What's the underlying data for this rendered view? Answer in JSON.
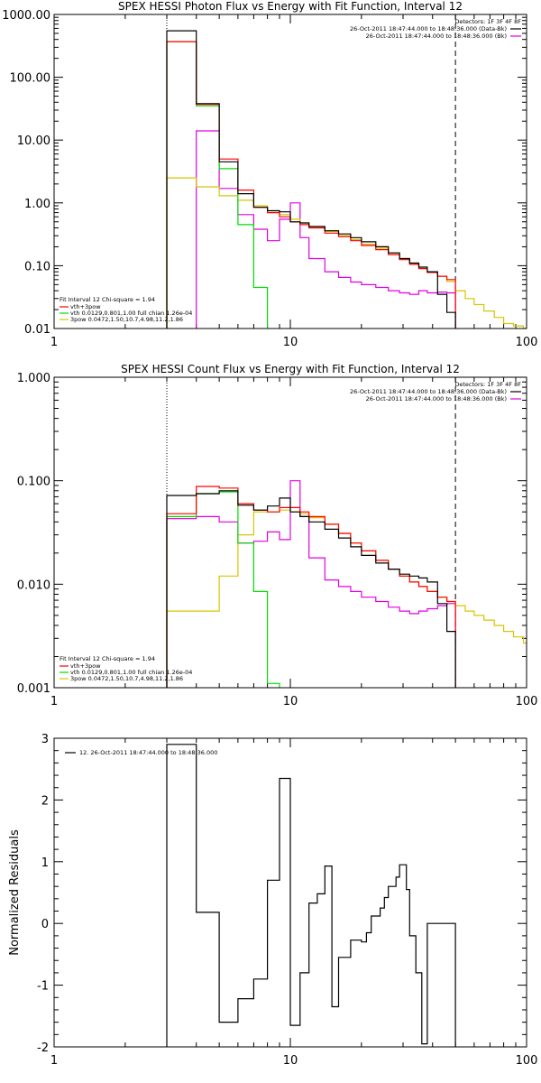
{
  "colors": {
    "black": "#000000",
    "red": "#ff0000",
    "green": "#00dd00",
    "gold": "#d7c400",
    "magenta": "#e000e0"
  },
  "chart_data": [
    {
      "type": "line",
      "style": "histogram-step",
      "title": "SPEX HESSI Photon Flux vs Energy with Fit Function, Interval 12",
      "xlabel": "",
      "ylabel": "",
      "xscale": "log",
      "yscale": "log",
      "xlim": [
        1,
        100
      ],
      "ylim": [
        0.01,
        1000
      ],
      "x_ticks": [
        "1",
        "10",
        "100"
      ],
      "y_ticks": [
        "0.01",
        "0.10",
        "1.00",
        "10.00",
        "100.00",
        "1000.00"
      ],
      "vlines": [
        {
          "x": 3,
          "style": "dotted"
        },
        {
          "x": 50,
          "style": "dashed"
        }
      ],
      "legend_top": {
        "header": "Detectors: 1F 3F 4F 8F",
        "entries": [
          {
            "text": "26-Oct-2011 18:47:44.000 to 18:48:36.000 (Data-Bk)",
            "color": "black"
          },
          {
            "text": "26-Oct-2011 18:47:44.000 to 18:48:36.000 (Bk)",
            "color": "magenta"
          }
        ]
      },
      "legend_bottom": {
        "header": "Fit Interval 12   Chi-square = 1.94",
        "entries": [
          {
            "text": "vth+3pow",
            "color": "red"
          },
          {
            "text": "vth 0.0129,0.801,1.00  full chian 1.26e-04",
            "color": "green"
          },
          {
            "text": "3pow 0.0472,1.50,10.7,4.98,11.2,1.86",
            "color": "gold"
          }
        ]
      },
      "series": [
        {
          "name": "Data-Bk",
          "color": "black",
          "bins": [
            3,
            4,
            5,
            6,
            7,
            8,
            9,
            10,
            11,
            12,
            14,
            16,
            18,
            20,
            23,
            26,
            29,
            32,
            35,
            38,
            42,
            46,
            50
          ],
          "values": [
            550,
            38,
            4.5,
            1.4,
            0.85,
            0.75,
            0.72,
            0.5,
            0.48,
            0.42,
            0.36,
            0.32,
            0.28,
            0.24,
            0.2,
            0.16,
            0.13,
            0.11,
            0.095,
            0.08,
            0.035,
            0.018
          ]
        },
        {
          "name": "vth+3pow",
          "color": "red",
          "bins": [
            3,
            4,
            5,
            6,
            7,
            8,
            9,
            10,
            11,
            12,
            14,
            16,
            18,
            20,
            23,
            26,
            29,
            32,
            35,
            38,
            42,
            46,
            50
          ],
          "values": [
            370,
            37,
            5,
            1.6,
            0.85,
            0.7,
            0.6,
            0.5,
            0.45,
            0.4,
            0.33,
            0.29,
            0.25,
            0.21,
            0.18,
            0.15,
            0.125,
            0.105,
            0.09,
            0.078,
            0.068,
            0.06
          ]
        },
        {
          "name": "vth",
          "color": "green",
          "bins": [
            3,
            4,
            5,
            6,
            7,
            8
          ],
          "values": [
            370,
            35,
            3.5,
            0.45,
            0.045
          ]
        },
        {
          "name": "3pow",
          "color": "gold",
          "bins": [
            3,
            4,
            5,
            6,
            7,
            8,
            9,
            10,
            11,
            12,
            14,
            16,
            18,
            20,
            23,
            26,
            29,
            32,
            35,
            38,
            42,
            46,
            50,
            55,
            60,
            66,
            73,
            80,
            88,
            97,
            100
          ],
          "values": [
            2.5,
            1.8,
            1.3,
            1.1,
            0.9,
            0.75,
            0.65,
            0.55,
            0.48,
            0.42,
            0.35,
            0.3,
            0.26,
            0.22,
            0.19,
            0.16,
            0.13,
            0.11,
            0.095,
            0.08,
            0.068,
            0.056,
            0.04,
            0.03,
            0.024,
            0.019,
            0.015,
            0.012,
            0.011,
            0.01
          ]
        },
        {
          "name": "Bk",
          "color": "magenta",
          "bins": [
            4,
            5,
            6,
            7,
            8,
            9,
            10,
            11,
            12,
            14,
            16,
            18,
            20,
            23,
            26,
            29,
            32,
            35,
            38,
            42,
            46,
            50
          ],
          "values": [
            14,
            1.7,
            0.65,
            0.38,
            0.25,
            0.55,
            1.0,
            0.28,
            0.13,
            0.08,
            0.065,
            0.055,
            0.05,
            0.045,
            0.04,
            0.037,
            0.035,
            0.04,
            0.037,
            0.038,
            0.037
          ]
        }
      ]
    },
    {
      "type": "line",
      "style": "histogram-step",
      "title": "SPEX HESSI Count Flux vs Energy with Fit Function, Interval 12",
      "xlabel": "",
      "ylabel": "",
      "xscale": "log",
      "yscale": "log",
      "xlim": [
        1,
        100
      ],
      "ylim": [
        0.001,
        1.0
      ],
      "x_ticks": [
        "1",
        "10",
        "100"
      ],
      "y_ticks": [
        "0.001",
        "0.010",
        "0.100",
        "1.000"
      ],
      "vlines": [
        {
          "x": 3,
          "style": "dotted"
        },
        {
          "x": 50,
          "style": "dashed"
        }
      ],
      "legend_top": {
        "header": "Detectors: 1F 3F 4F 8F",
        "entries": [
          {
            "text": "26-Oct-2011 18:47:44.000 to 18:48:36.000 (Data-Bk)",
            "color": "black"
          },
          {
            "text": "26-Oct-2011 18:47:44.000 to 18:48:36.000 (Bk)",
            "color": "magenta"
          }
        ]
      },
      "legend_bottom": {
        "header": "Fit Interval 12   Chi-square = 1.94",
        "entries": [
          {
            "text": "vth+3pow",
            "color": "red"
          },
          {
            "text": "vth 0.0129,0.801,1.00  full chian 1.26e-04",
            "color": "green"
          },
          {
            "text": "3pow 0.0472,1.50,10.7,4.98,11.2,1.86",
            "color": "gold"
          }
        ]
      },
      "series": [
        {
          "name": "Data-Bk",
          "color": "black",
          "bins": [
            3,
            4,
            5,
            6,
            7,
            8,
            9,
            10,
            11,
            12,
            14,
            16,
            18,
            20,
            23,
            26,
            29,
            32,
            35,
            38,
            42,
            46,
            50
          ],
          "values": [
            0.072,
            0.075,
            0.08,
            0.058,
            0.052,
            0.057,
            0.068,
            0.05,
            0.045,
            0.04,
            0.034,
            0.028,
            0.023,
            0.019,
            0.016,
            0.014,
            0.0125,
            0.012,
            0.0115,
            0.0105,
            0.0065,
            0.0035
          ]
        },
        {
          "name": "vth+3pow",
          "color": "red",
          "bins": [
            3,
            4,
            5,
            6,
            7,
            8,
            9,
            10,
            11,
            12,
            14,
            16,
            18,
            20,
            23,
            26,
            29,
            32,
            35,
            38,
            42,
            46,
            50
          ],
          "values": [
            0.048,
            0.088,
            0.085,
            0.06,
            0.052,
            0.05,
            0.055,
            0.055,
            0.05,
            0.045,
            0.038,
            0.031,
            0.025,
            0.021,
            0.017,
            0.014,
            0.012,
            0.0105,
            0.0095,
            0.0085,
            0.0075,
            0.0068
          ]
        },
        {
          "name": "vth",
          "color": "green",
          "bins": [
            3,
            4,
            5,
            6,
            7,
            8,
            9
          ],
          "values": [
            0.045,
            0.075,
            0.078,
            0.025,
            0.0085,
            0.0011
          ]
        },
        {
          "name": "3pow",
          "color": "gold",
          "bins": [
            3,
            4,
            5,
            6,
            7,
            8,
            9,
            10,
            11,
            12,
            14,
            16,
            18,
            20,
            23,
            26,
            29,
            32,
            35,
            38,
            42,
            46,
            50,
            55,
            60,
            66,
            73,
            80,
            88,
            97,
            100
          ],
          "values": [
            0.0055,
            0.0055,
            0.012,
            0.03,
            0.05,
            0.05,
            0.052,
            0.05,
            0.048,
            0.044,
            0.038,
            0.031,
            0.025,
            0.021,
            0.017,
            0.014,
            0.012,
            0.0105,
            0.0095,
            0.0085,
            0.0075,
            0.0068,
            0.0062,
            0.0055,
            0.005,
            0.0045,
            0.004,
            0.0035,
            0.0031,
            0.0027
          ]
        },
        {
          "name": "Bk",
          "color": "magenta",
          "bins": [
            3,
            4,
            5,
            6,
            7,
            8,
            9,
            10,
            11,
            12,
            14,
            16,
            18,
            20,
            23,
            26,
            29,
            32,
            35,
            38,
            42,
            46,
            50
          ],
          "values": [
            0.043,
            0.045,
            0.04,
            0.025,
            0.026,
            0.032,
            0.027,
            0.1,
            0.045,
            0.018,
            0.011,
            0.0095,
            0.0085,
            0.0075,
            0.0068,
            0.006,
            0.0055,
            0.0052,
            0.0055,
            0.0058,
            0.0062,
            0.0065
          ]
        }
      ]
    },
    {
      "type": "line",
      "style": "histogram-step",
      "title": "",
      "xlabel": "",
      "ylabel": "Normalized Residuals",
      "xscale": "log",
      "yscale": "linear",
      "xlim": [
        1,
        100
      ],
      "ylim": [
        -2,
        3
      ],
      "x_ticks": [
        "1",
        "10",
        "100"
      ],
      "y_ticks": [
        "-2",
        "-1",
        "0",
        "1",
        "2",
        "3"
      ],
      "legend": {
        "entries": [
          {
            "text": "12. 26-Oct-2011 18:47:44.000 to 18:48:36.000",
            "color": "black"
          }
        ]
      },
      "series": [
        {
          "name": "",
          "color": "black",
          "bins": [
            3,
            4,
            5,
            6,
            7,
            8,
            9,
            10,
            11,
            12,
            13,
            14,
            15,
            16,
            18,
            20,
            21,
            22,
            24,
            25,
            26,
            28,
            29,
            31,
            32,
            34,
            36,
            38,
            40,
            42,
            46,
            50
          ],
          "values": [
            2.9,
            0.18,
            -1.6,
            -1.22,
            -0.9,
            0.7,
            2.35,
            -1.65,
            -0.8,
            0.33,
            0.48,
            0.93,
            -1.35,
            -0.55,
            -0.27,
            -0.3,
            -0.15,
            0.12,
            0.25,
            0.42,
            0.6,
            0.75,
            0.95,
            0.55,
            -0.2,
            -0.8,
            -1.95,
            0.0,
            0.0,
            0.0,
            0.0
          ]
        }
      ]
    }
  ]
}
